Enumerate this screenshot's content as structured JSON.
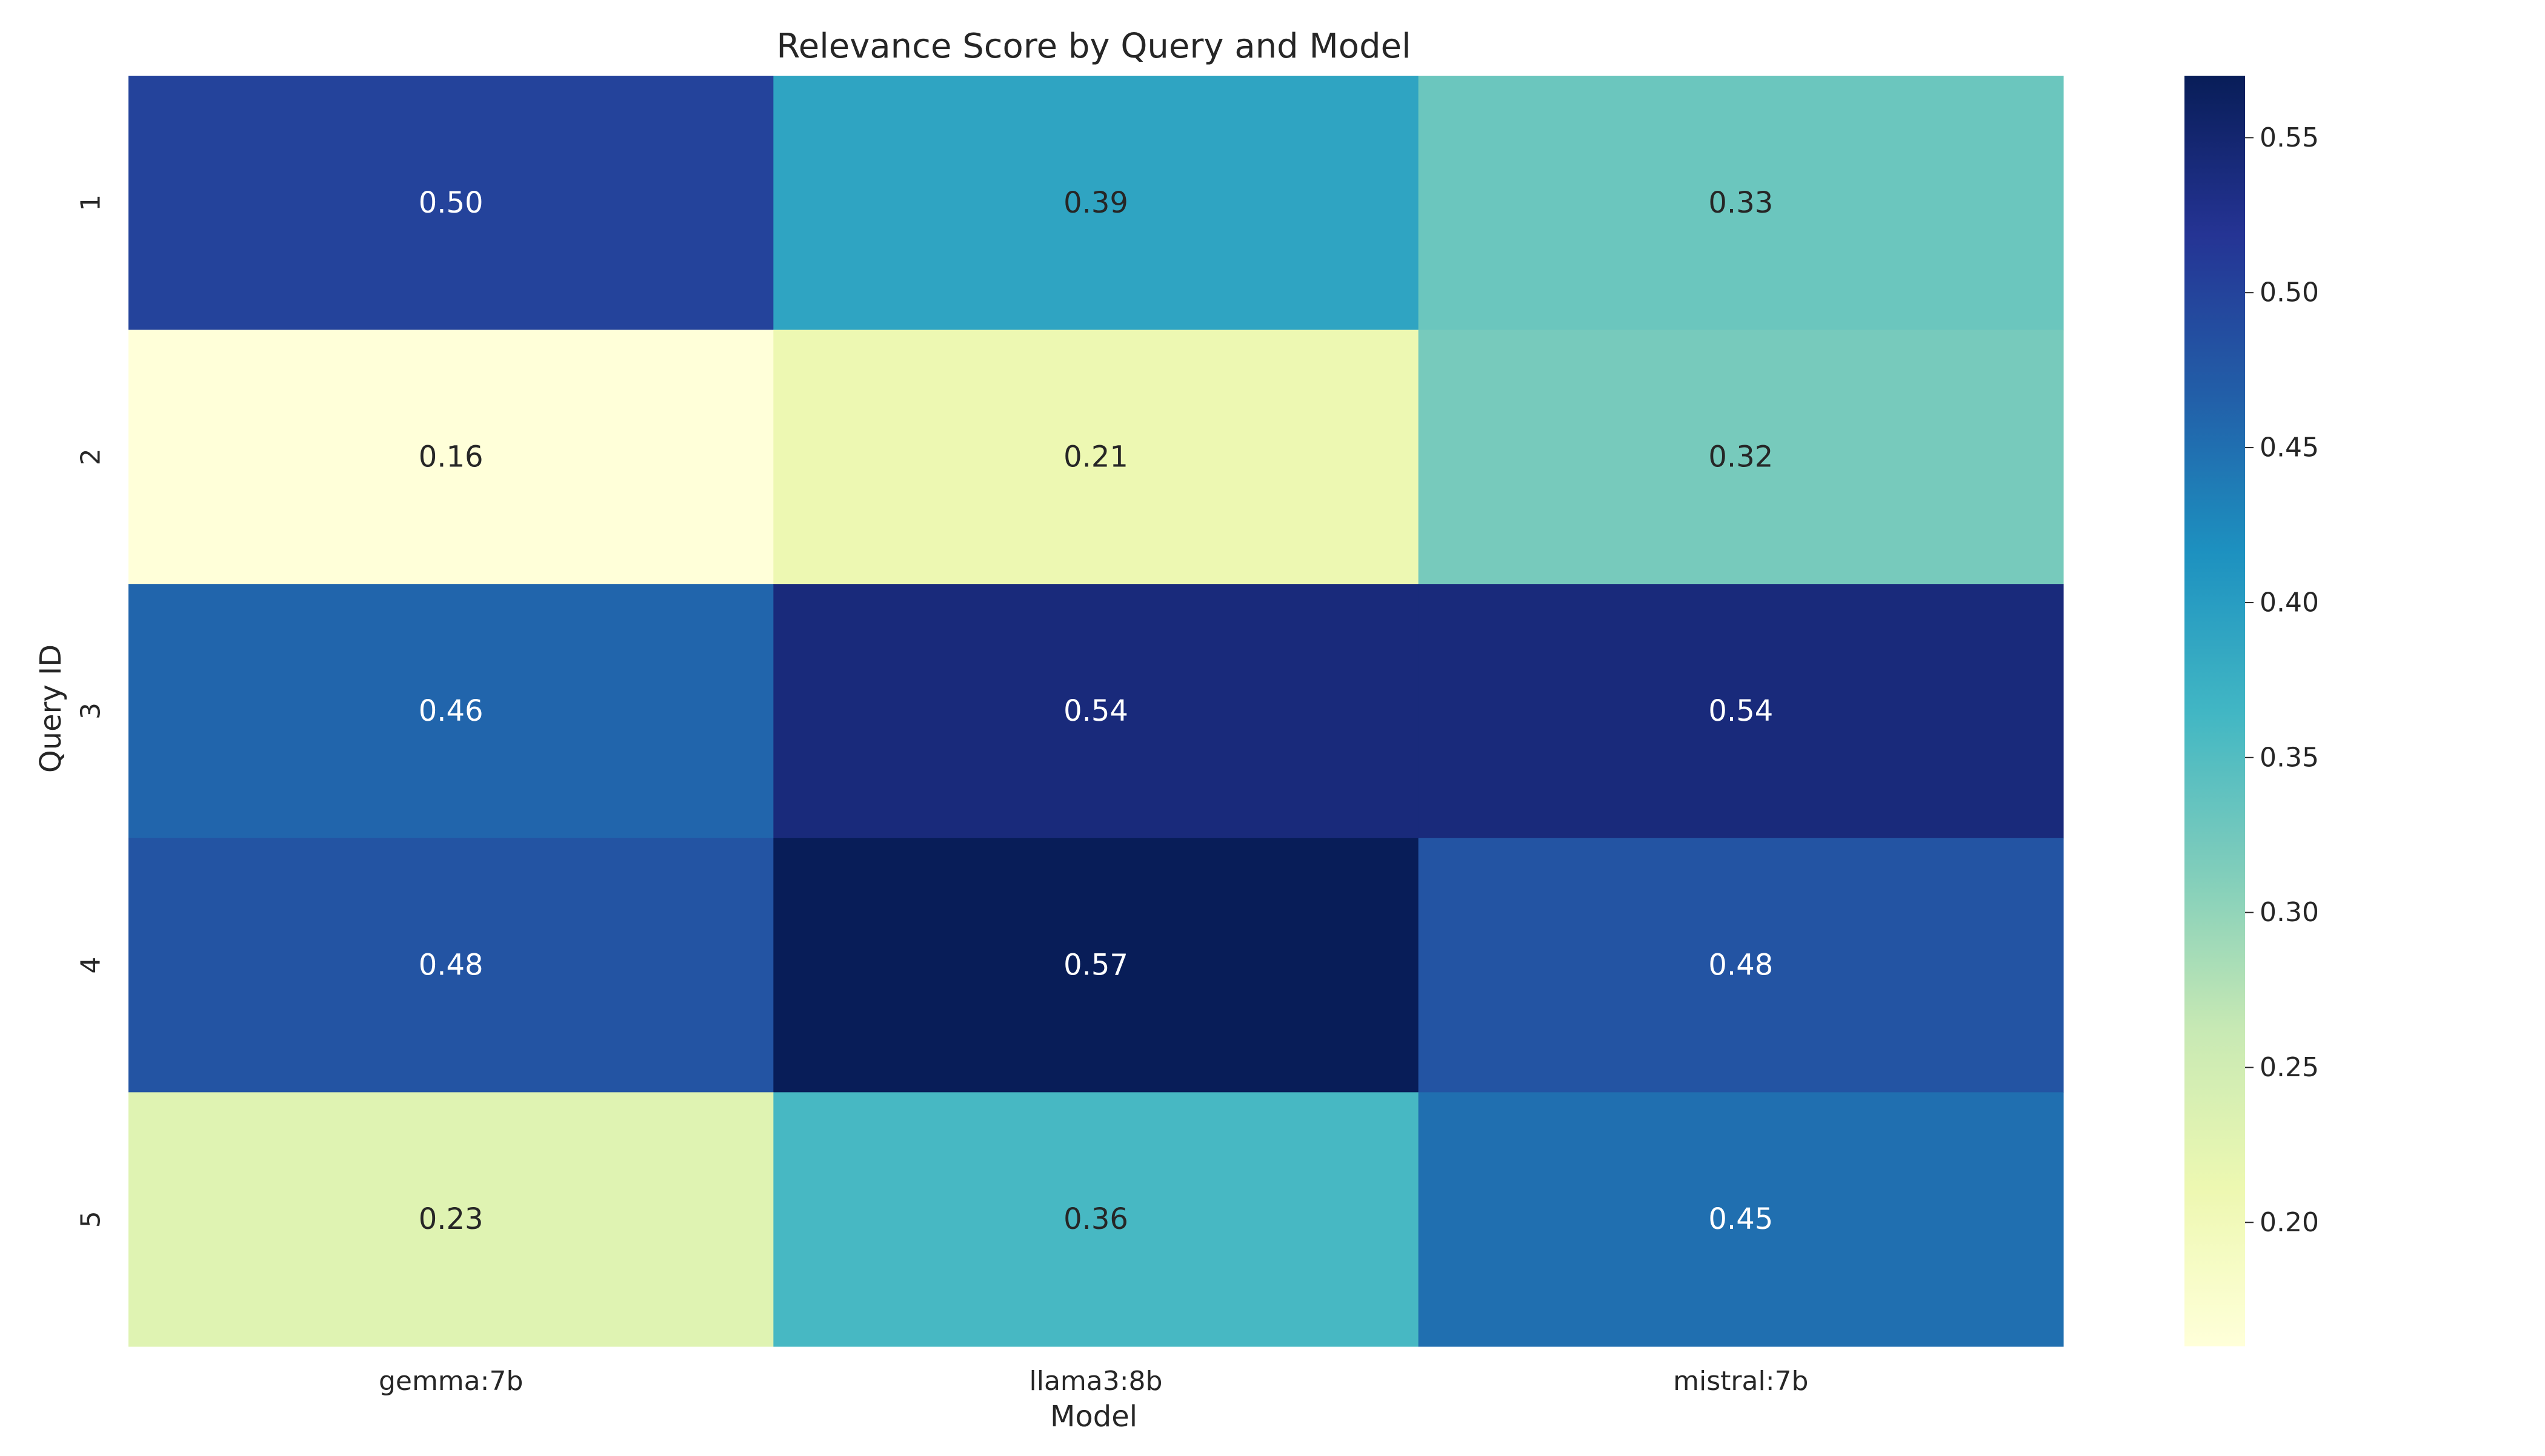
{
  "chart_data": {
    "type": "heatmap",
    "title": "Relevance Score by Query and Model",
    "xlabel": "Model",
    "ylabel": "Query ID",
    "x_categories": [
      "gemma:7b",
      "llama3:8b",
      "mistral:7b"
    ],
    "y_categories": [
      "1",
      "2",
      "3",
      "4",
      "5"
    ],
    "values": [
      [
        0.5,
        0.39,
        0.33
      ],
      [
        0.16,
        0.21,
        0.32
      ],
      [
        0.46,
        0.54,
        0.54
      ],
      [
        0.48,
        0.57,
        0.48
      ],
      [
        0.23,
        0.36,
        0.45
      ]
    ],
    "value_format": "0.00",
    "colormap": "YlGnBu",
    "colorbar": {
      "range": [
        0.16,
        0.57
      ],
      "ticks": [
        0.2,
        0.25,
        0.3,
        0.35,
        0.4,
        0.45,
        0.5,
        0.55
      ],
      "tick_labels": [
        "0.20",
        "0.25",
        "0.30",
        "0.35",
        "0.40",
        "0.45",
        "0.50",
        "0.55"
      ],
      "placement": "right"
    },
    "colors": {
      "ylgnbu": [
        "#ffffd9",
        "#edf8b1",
        "#c7e9b4",
        "#7fcdbb",
        "#41b6c4",
        "#1d91c0",
        "#225ea8",
        "#253494",
        "#081d58"
      ],
      "text_dark": "#262626",
      "text_light": "#ffffff"
    },
    "grid": false
  }
}
